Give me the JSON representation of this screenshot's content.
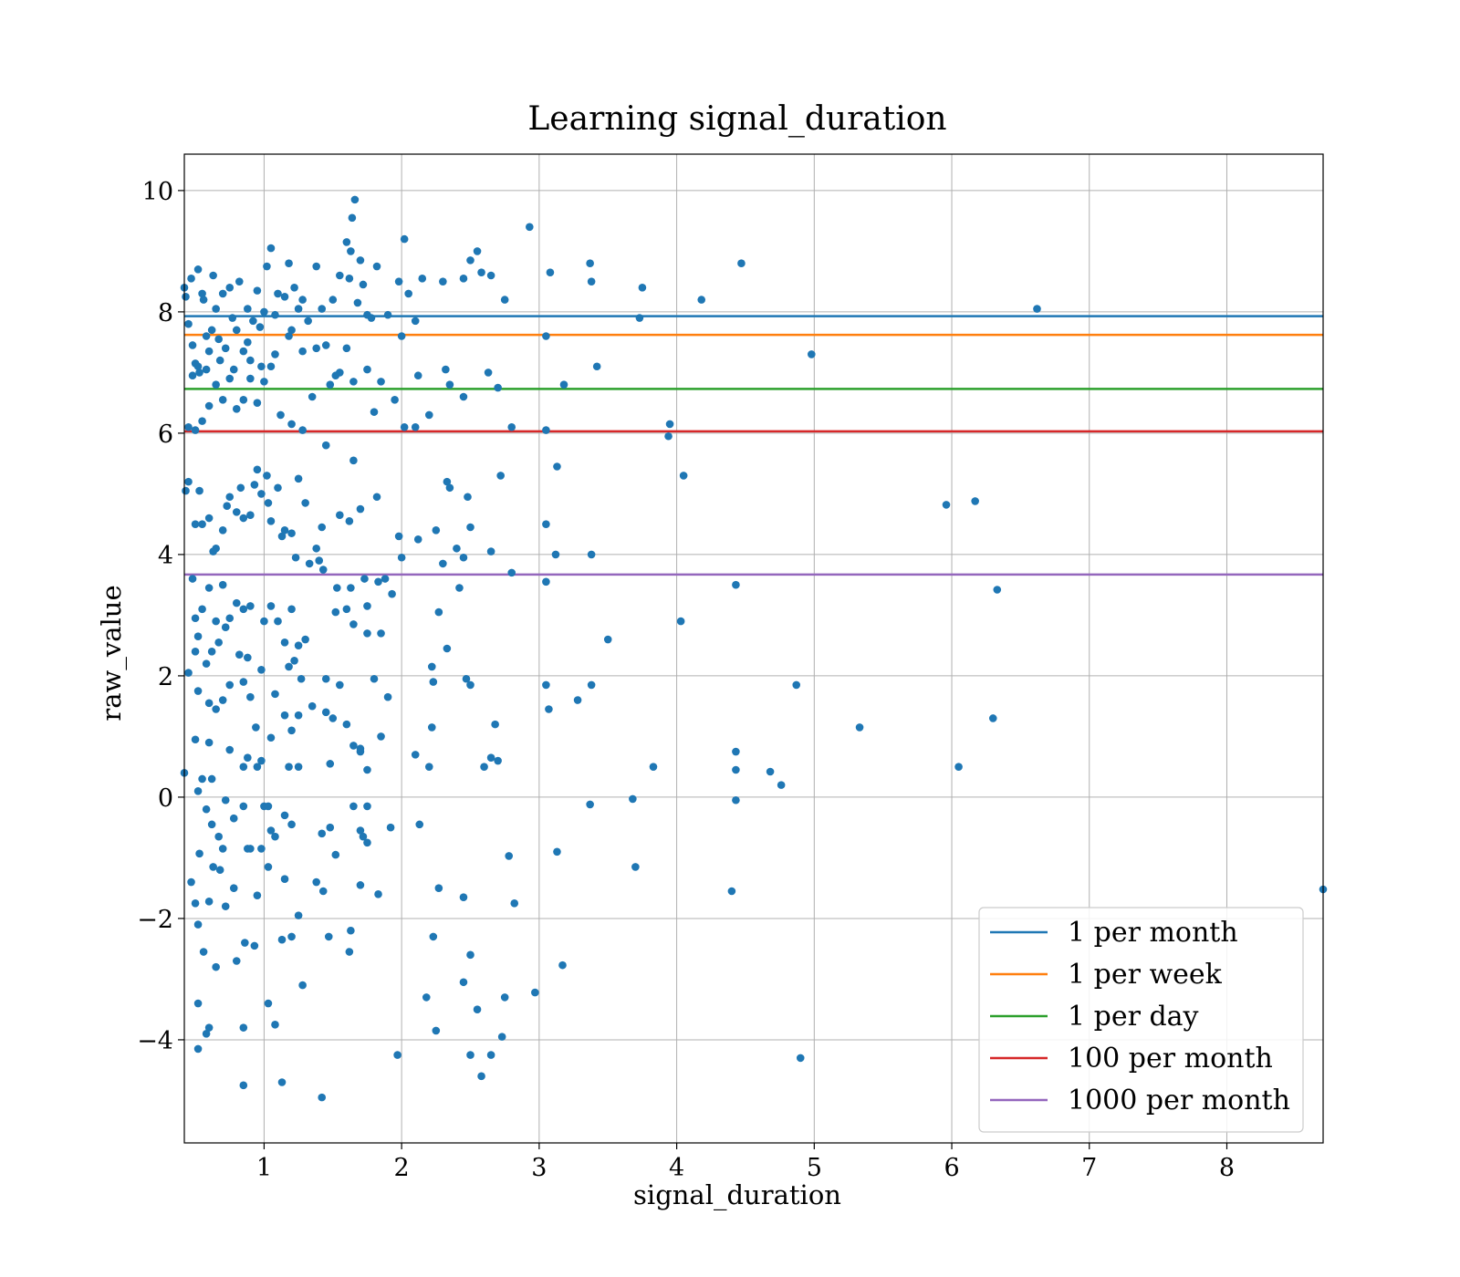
{
  "chart_data": {
    "type": "scatter",
    "title": "Learning signal_duration",
    "xlabel": "signal_duration",
    "ylabel": "raw_value",
    "xlim": [
      0.42,
      8.7
    ],
    "ylim": [
      -5.7,
      10.6
    ],
    "x_ticks": [
      1,
      2,
      3,
      4,
      5,
      6,
      7,
      8
    ],
    "y_ticks": [
      -4,
      -2,
      0,
      2,
      4,
      6,
      8,
      10
    ],
    "x_tick_labels": [
      "1",
      "2",
      "3",
      "4",
      "5",
      "6",
      "7",
      "8"
    ],
    "y_tick_labels": [
      "−4",
      "−2",
      "0",
      "2",
      "4",
      "6",
      "8",
      "10"
    ],
    "grid": true,
    "legend_position": "lower-right",
    "point_color": "#1f77b4",
    "hlines": [
      {
        "name": "1 per month",
        "y": 7.93,
        "color": "#1f77b4"
      },
      {
        "name": "1 per week",
        "y": 7.62,
        "color": "#ff7f0e"
      },
      {
        "name": "1 per day",
        "y": 6.73,
        "color": "#2ca02c"
      },
      {
        "name": "100 per month",
        "y": 6.03,
        "color": "#d62728"
      },
      {
        "name": "1000 per month",
        "y": 3.67,
        "color": "#9467bd"
      }
    ],
    "points": [
      [
        0.42,
        8.4
      ],
      [
        0.43,
        8.25
      ],
      [
        0.45,
        7.8
      ],
      [
        0.47,
        8.55
      ],
      [
        0.48,
        6.95
      ],
      [
        0.5,
        7.15
      ],
      [
        0.52,
        8.7
      ],
      [
        0.53,
        7.0
      ],
      [
        0.55,
        8.3
      ],
      [
        0.56,
        8.2
      ],
      [
        0.58,
        7.6
      ],
      [
        0.6,
        7.35
      ],
      [
        0.62,
        7.7
      ],
      [
        0.63,
        8.6
      ],
      [
        0.65,
        8.05
      ],
      [
        0.67,
        7.55
      ],
      [
        0.7,
        8.3
      ],
      [
        0.72,
        7.4
      ],
      [
        0.75,
        8.4
      ],
      [
        0.77,
        7.9
      ],
      [
        0.8,
        7.7
      ],
      [
        0.82,
        8.5
      ],
      [
        0.85,
        7.35
      ],
      [
        0.88,
        8.05
      ],
      [
        0.9,
        7.2
      ],
      [
        0.92,
        7.85
      ],
      [
        0.95,
        8.35
      ],
      [
        0.97,
        7.75
      ],
      [
        1.0,
        8.0
      ],
      [
        1.02,
        8.75
      ],
      [
        1.05,
        9.05
      ],
      [
        1.08,
        7.95
      ],
      [
        1.1,
        8.3
      ],
      [
        1.15,
        8.25
      ],
      [
        1.18,
        8.8
      ],
      [
        1.2,
        7.7
      ],
      [
        1.22,
        8.4
      ],
      [
        1.25,
        8.05
      ],
      [
        1.28,
        8.2
      ],
      [
        1.32,
        7.85
      ],
      [
        1.38,
        8.75
      ],
      [
        1.42,
        8.05
      ],
      [
        1.5,
        8.2
      ],
      [
        1.55,
        8.6
      ],
      [
        1.6,
        9.15
      ],
      [
        1.62,
        8.55
      ],
      [
        1.63,
        9.0
      ],
      [
        1.64,
        9.55
      ],
      [
        1.66,
        9.85
      ],
      [
        1.68,
        8.15
      ],
      [
        1.7,
        8.85
      ],
      [
        1.72,
        8.45
      ],
      [
        1.75,
        7.95
      ],
      [
        1.78,
        7.9
      ],
      [
        1.82,
        8.75
      ],
      [
        1.9,
        7.95
      ],
      [
        1.98,
        8.5
      ],
      [
        2.0,
        7.6
      ],
      [
        2.02,
        9.2
      ],
      [
        2.05,
        8.3
      ],
      [
        2.1,
        7.85
      ],
      [
        2.15,
        8.55
      ],
      [
        2.3,
        8.5
      ],
      [
        2.45,
        8.55
      ],
      [
        2.5,
        8.85
      ],
      [
        2.55,
        9.0
      ],
      [
        2.58,
        8.65
      ],
      [
        2.65,
        8.6
      ],
      [
        2.75,
        8.2
      ],
      [
        2.93,
        9.4
      ],
      [
        3.08,
        8.65
      ],
      [
        3.37,
        8.8
      ],
      [
        3.38,
        8.5
      ],
      [
        3.75,
        8.4
      ],
      [
        4.18,
        8.2
      ],
      [
        4.47,
        8.8
      ],
      [
        6.62,
        8.05
      ],
      [
        3.73,
        7.9
      ],
      [
        3.05,
        7.6
      ],
      [
        3.42,
        7.1
      ],
      [
        4.98,
        7.3
      ],
      [
        2.63,
        7.0
      ],
      [
        2.7,
        6.75
      ],
      [
        2.32,
        7.05
      ],
      [
        2.35,
        6.8
      ],
      [
        2.45,
        6.6
      ],
      [
        2.12,
        6.95
      ],
      [
        2.1,
        6.1
      ],
      [
        2.2,
        6.3
      ],
      [
        2.02,
        6.1
      ],
      [
        1.95,
        6.55
      ],
      [
        1.8,
        6.35
      ],
      [
        1.6,
        7.4
      ],
      [
        1.55,
        7.0
      ],
      [
        1.48,
        6.8
      ],
      [
        1.35,
        6.6
      ],
      [
        1.28,
        6.05
      ],
      [
        1.2,
        6.15
      ],
      [
        1.12,
        6.3
      ],
      [
        1.05,
        7.1
      ],
      [
        1.0,
        6.85
      ],
      [
        0.95,
        6.5
      ],
      [
        0.9,
        6.9
      ],
      [
        0.85,
        6.55
      ],
      [
        0.8,
        6.4
      ],
      [
        0.75,
        6.9
      ],
      [
        0.7,
        6.55
      ],
      [
        0.65,
        6.8
      ],
      [
        0.6,
        6.45
      ],
      [
        0.55,
        6.2
      ],
      [
        0.5,
        6.05
      ],
      [
        0.45,
        6.1
      ],
      [
        0.52,
        7.1
      ],
      [
        0.48,
        7.45
      ],
      [
        0.58,
        7.05
      ],
      [
        0.68,
        7.2
      ],
      [
        0.78,
        7.05
      ],
      [
        0.88,
        7.5
      ],
      [
        0.98,
        7.1
      ],
      [
        1.08,
        7.3
      ],
      [
        1.18,
        7.6
      ],
      [
        1.28,
        7.35
      ],
      [
        1.38,
        7.4
      ],
      [
        1.45,
        7.45
      ],
      [
        1.52,
        6.95
      ],
      [
        1.65,
        6.85
      ],
      [
        1.75,
        7.05
      ],
      [
        1.85,
        6.85
      ],
      [
        2.8,
        6.1
      ],
      [
        3.05,
        6.05
      ],
      [
        3.18,
        6.8
      ],
      [
        3.95,
        6.15
      ],
      [
        3.94,
        5.95
      ],
      [
        3.13,
        5.45
      ],
      [
        4.05,
        5.3
      ],
      [
        2.72,
        5.3
      ],
      [
        2.33,
        5.2
      ],
      [
        2.35,
        5.1
      ],
      [
        2.12,
        4.25
      ],
      [
        1.98,
        4.3
      ],
      [
        1.82,
        4.95
      ],
      [
        1.7,
        4.75
      ],
      [
        1.65,
        5.55
      ],
      [
        1.62,
        4.55
      ],
      [
        1.55,
        4.65
      ],
      [
        1.45,
        5.8
      ],
      [
        1.42,
        4.45
      ],
      [
        1.38,
        4.1
      ],
      [
        1.3,
        4.85
      ],
      [
        1.25,
        5.25
      ],
      [
        1.2,
        4.35
      ],
      [
        1.15,
        4.4
      ],
      [
        1.1,
        5.1
      ],
      [
        1.05,
        4.55
      ],
      [
        1.02,
        5.3
      ],
      [
        0.98,
        5.0
      ],
      [
        0.95,
        5.4
      ],
      [
        0.9,
        4.65
      ],
      [
        0.85,
        4.6
      ],
      [
        0.8,
        4.7
      ],
      [
        0.75,
        4.95
      ],
      [
        0.7,
        4.4
      ],
      [
        0.65,
        4.1
      ],
      [
        0.6,
        4.6
      ],
      [
        0.55,
        4.5
      ],
      [
        0.5,
        4.5
      ],
      [
        0.45,
        5.2
      ],
      [
        0.43,
        5.05
      ],
      [
        0.53,
        5.05
      ],
      [
        0.63,
        4.05
      ],
      [
        0.73,
        4.8
      ],
      [
        0.83,
        5.1
      ],
      [
        0.93,
        5.15
      ],
      [
        1.03,
        4.85
      ],
      [
        1.13,
        4.3
      ],
      [
        1.23,
        3.95
      ],
      [
        1.33,
        3.85
      ],
      [
        1.43,
        3.75
      ],
      [
        1.53,
        3.45
      ],
      [
        1.63,
        3.45
      ],
      [
        1.73,
        3.6
      ],
      [
        1.83,
        3.55
      ],
      [
        1.93,
        3.35
      ],
      [
        2.0,
        3.95
      ],
      [
        2.25,
        4.4
      ],
      [
        2.3,
        3.85
      ],
      [
        2.4,
        4.1
      ],
      [
        2.45,
        3.95
      ],
      [
        2.48,
        4.95
      ],
      [
        2.5,
        4.45
      ],
      [
        2.65,
        4.05
      ],
      [
        2.8,
        3.7
      ],
      [
        3.05,
        4.5
      ],
      [
        3.12,
        4.0
      ],
      [
        3.38,
        4.0
      ],
      [
        3.05,
        3.55
      ],
      [
        4.43,
        3.5
      ],
      [
        6.33,
        3.42
      ],
      [
        5.96,
        4.82
      ],
      [
        6.17,
        4.88
      ],
      [
        2.42,
        3.45
      ],
      [
        2.27,
        3.05
      ],
      [
        1.88,
        3.6
      ],
      [
        1.75,
        3.15
      ],
      [
        1.6,
        3.1
      ],
      [
        1.52,
        3.05
      ],
      [
        1.4,
        3.9
      ],
      [
        1.3,
        2.6
      ],
      [
        1.25,
        2.5
      ],
      [
        1.2,
        3.1
      ],
      [
        1.15,
        2.55
      ],
      [
        1.1,
        2.9
      ],
      [
        1.05,
        3.15
      ],
      [
        1.0,
        2.9
      ],
      [
        0.9,
        3.15
      ],
      [
        0.85,
        3.1
      ],
      [
        0.8,
        3.2
      ],
      [
        0.75,
        2.95
      ],
      [
        0.7,
        3.5
      ],
      [
        0.65,
        2.9
      ],
      [
        0.6,
        3.45
      ],
      [
        0.55,
        3.1
      ],
      [
        0.5,
        2.95
      ],
      [
        0.48,
        3.6
      ],
      [
        0.52,
        2.65
      ],
      [
        0.62,
        2.4
      ],
      [
        0.67,
        2.55
      ],
      [
        0.72,
        2.8
      ],
      [
        0.82,
        2.35
      ],
      [
        0.88,
        2.3
      ],
      [
        0.98,
        2.1
      ],
      [
        0.45,
        2.05
      ],
      [
        0.58,
        2.2
      ],
      [
        0.5,
        2.4
      ],
      [
        1.08,
        1.7
      ],
      [
        1.18,
        2.15
      ],
      [
        1.22,
        2.25
      ],
      [
        1.27,
        1.95
      ],
      [
        1.35,
        1.5
      ],
      [
        1.45,
        1.95
      ],
      [
        1.55,
        1.85
      ],
      [
        1.65,
        2.85
      ],
      [
        1.75,
        2.7
      ],
      [
        1.85,
        2.7
      ],
      [
        1.9,
        1.65
      ],
      [
        2.22,
        2.15
      ],
      [
        2.23,
        1.9
      ],
      [
        2.33,
        2.45
      ],
      [
        2.47,
        1.95
      ],
      [
        2.5,
        1.85
      ],
      [
        3.05,
        1.85
      ],
      [
        3.28,
        1.6
      ],
      [
        3.38,
        1.85
      ],
      [
        3.5,
        2.6
      ],
      [
        4.03,
        2.9
      ],
      [
        4.87,
        1.85
      ],
      [
        1.8,
        1.95
      ],
      [
        0.52,
        1.75
      ],
      [
        0.6,
        1.55
      ],
      [
        0.65,
        1.45
      ],
      [
        0.7,
        1.6
      ],
      [
        0.75,
        1.85
      ],
      [
        0.85,
        1.9
      ],
      [
        0.9,
        1.65
      ],
      [
        0.94,
        1.15
      ],
      [
        0.98,
        0.6
      ],
      [
        1.05,
        0.98
      ],
      [
        1.15,
        1.35
      ],
      [
        1.2,
        1.1
      ],
      [
        1.25,
        1.35
      ],
      [
        1.45,
        1.4
      ],
      [
        1.5,
        1.3
      ],
      [
        1.6,
        1.2
      ],
      [
        1.65,
        0.85
      ],
      [
        1.7,
        0.75
      ],
      [
        1.75,
        0.45
      ],
      [
        1.85,
        1.0
      ],
      [
        2.1,
        0.7
      ],
      [
        2.2,
        0.5
      ],
      [
        2.22,
        1.15
      ],
      [
        2.6,
        0.5
      ],
      [
        2.65,
        0.65
      ],
      [
        2.7,
        0.6
      ],
      [
        2.68,
        1.2
      ],
      [
        3.07,
        1.45
      ],
      [
        3.83,
        0.5
      ],
      [
        4.43,
        0.75
      ],
      [
        4.43,
        0.45
      ],
      [
        4.68,
        0.42
      ],
      [
        4.76,
        0.2
      ],
      [
        5.33,
        1.15
      ],
      [
        6.05,
        0.5
      ],
      [
        6.3,
        1.3
      ],
      [
        0.42,
        0.4
      ],
      [
        0.5,
        0.95
      ],
      [
        0.52,
        0.1
      ],
      [
        0.55,
        0.3
      ],
      [
        0.6,
        0.9
      ],
      [
        0.62,
        0.3
      ],
      [
        0.75,
        0.78
      ],
      [
        0.85,
        0.5
      ],
      [
        0.88,
        0.65
      ],
      [
        0.95,
        0.5
      ],
      [
        1.18,
        0.5
      ],
      [
        1.25,
        0.5
      ],
      [
        1.48,
        0.55
      ],
      [
        1.7,
        0.8
      ],
      [
        0.58,
        -0.2
      ],
      [
        0.62,
        -0.45
      ],
      [
        0.67,
        -0.65
      ],
      [
        0.72,
        -0.05
      ],
      [
        0.78,
        -0.35
      ],
      [
        0.85,
        -0.15
      ],
      [
        0.9,
        -0.85
      ],
      [
        1.0,
        -0.15
      ],
      [
        1.03,
        -0.15
      ],
      [
        1.05,
        -0.55
      ],
      [
        1.08,
        -0.65
      ],
      [
        1.15,
        -0.3
      ],
      [
        1.2,
        -0.45
      ],
      [
        1.42,
        -0.6
      ],
      [
        1.48,
        -0.5
      ],
      [
        1.65,
        -0.15
      ],
      [
        1.7,
        -0.55
      ],
      [
        1.72,
        -0.65
      ],
      [
        1.75,
        -0.15
      ],
      [
        1.92,
        -0.5
      ],
      [
        2.13,
        -0.45
      ],
      [
        3.37,
        -0.12
      ],
      [
        3.68,
        -0.03
      ],
      [
        4.43,
        -0.05
      ],
      [
        0.53,
        -0.93
      ],
      [
        0.63,
        -1.15
      ],
      [
        0.68,
        -1.2
      ],
      [
        0.7,
        -0.85
      ],
      [
        0.78,
        -1.5
      ],
      [
        0.88,
        -0.85
      ],
      [
        0.98,
        -0.85
      ],
      [
        1.03,
        -1.15
      ],
      [
        1.15,
        -1.35
      ],
      [
        1.25,
        -1.95
      ],
      [
        1.38,
        -1.4
      ],
      [
        1.43,
        -1.55
      ],
      [
        1.52,
        -0.95
      ],
      [
        1.75,
        -0.75
      ],
      [
        1.7,
        -1.45
      ],
      [
        1.83,
        -1.6
      ],
      [
        0.47,
        -1.4
      ],
      [
        0.5,
        -1.75
      ],
      [
        0.6,
        -1.72
      ],
      [
        0.72,
        -1.8
      ],
      [
        0.95,
        -1.62
      ],
      [
        2.27,
        -1.5
      ],
      [
        2.45,
        -1.65
      ],
      [
        2.78,
        -0.97
      ],
      [
        3.13,
        -0.9
      ],
      [
        3.7,
        -1.15
      ],
      [
        4.4,
        -1.55
      ],
      [
        8.7,
        -1.52
      ],
      [
        2.82,
        -1.75
      ],
      [
        0.52,
        -2.1
      ],
      [
        0.56,
        -2.55
      ],
      [
        0.65,
        -2.8
      ],
      [
        0.8,
        -2.7
      ],
      [
        0.86,
        -2.4
      ],
      [
        0.93,
        -2.45
      ],
      [
        1.13,
        -2.35
      ],
      [
        1.2,
        -2.3
      ],
      [
        1.28,
        -3.1
      ],
      [
        1.47,
        -2.3
      ],
      [
        1.63,
        -2.2
      ],
      [
        1.62,
        -2.55
      ],
      [
        2.23,
        -2.3
      ],
      [
        2.5,
        -2.6
      ],
      [
        2.45,
        -3.05
      ],
      [
        3.17,
        -2.77
      ],
      [
        2.97,
        -3.22
      ],
      [
        2.18,
        -3.3
      ],
      [
        2.75,
        -3.3
      ],
      [
        2.55,
        -3.5
      ],
      [
        0.52,
        -3.4
      ],
      [
        1.03,
        -3.4
      ],
      [
        0.6,
        -3.8
      ],
      [
        0.58,
        -3.9
      ],
      [
        0.85,
        -3.8
      ],
      [
        1.08,
        -3.75
      ],
      [
        2.25,
        -3.85
      ],
      [
        2.73,
        -3.95
      ],
      [
        0.52,
        -4.15
      ],
      [
        1.97,
        -4.25
      ],
      [
        2.5,
        -4.25
      ],
      [
        2.65,
        -4.25
      ],
      [
        2.58,
        -4.6
      ],
      [
        4.9,
        -4.3
      ],
      [
        0.85,
        -4.75
      ],
      [
        1.13,
        -4.7
      ],
      [
        1.42,
        -4.95
      ]
    ]
  }
}
